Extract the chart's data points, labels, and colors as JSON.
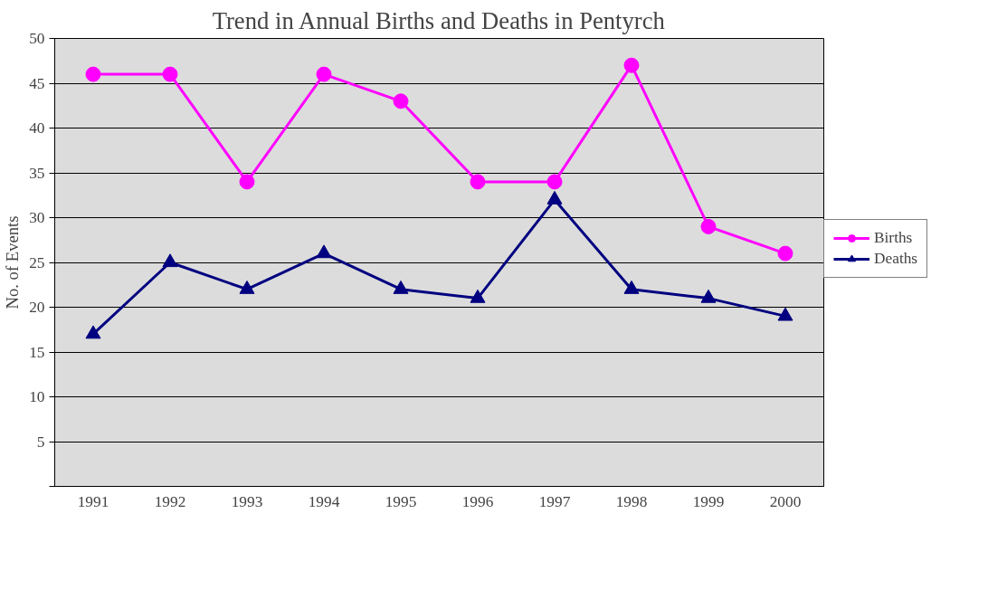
{
  "chart_data": {
    "type": "line",
    "title": "Trend in Annual Births and Deaths in Pentyrch",
    "ylabel": "No. of Events",
    "categories": [
      "1991",
      "1992",
      "1993",
      "1994",
      "1995",
      "1996",
      "1997",
      "1998",
      "1999",
      "2000"
    ],
    "series": [
      {
        "name": "Births",
        "color": "#ff00ff",
        "marker": "circle",
        "values": [
          46,
          46,
          34,
          46,
          43,
          34,
          34,
          47,
          29,
          26
        ]
      },
      {
        "name": "Deaths",
        "color": "#000080",
        "marker": "triangle",
        "values": [
          17,
          25,
          22,
          26,
          22,
          21,
          32,
          22,
          21,
          19
        ]
      }
    ],
    "ylim": [
      0,
      50
    ],
    "yticks": [
      {
        "value": 0,
        "label": null
      },
      5,
      10,
      15,
      20,
      25,
      30,
      35,
      40,
      45,
      50
    ],
    "grid": "y",
    "legend": "right",
    "line_style": "solid"
  }
}
